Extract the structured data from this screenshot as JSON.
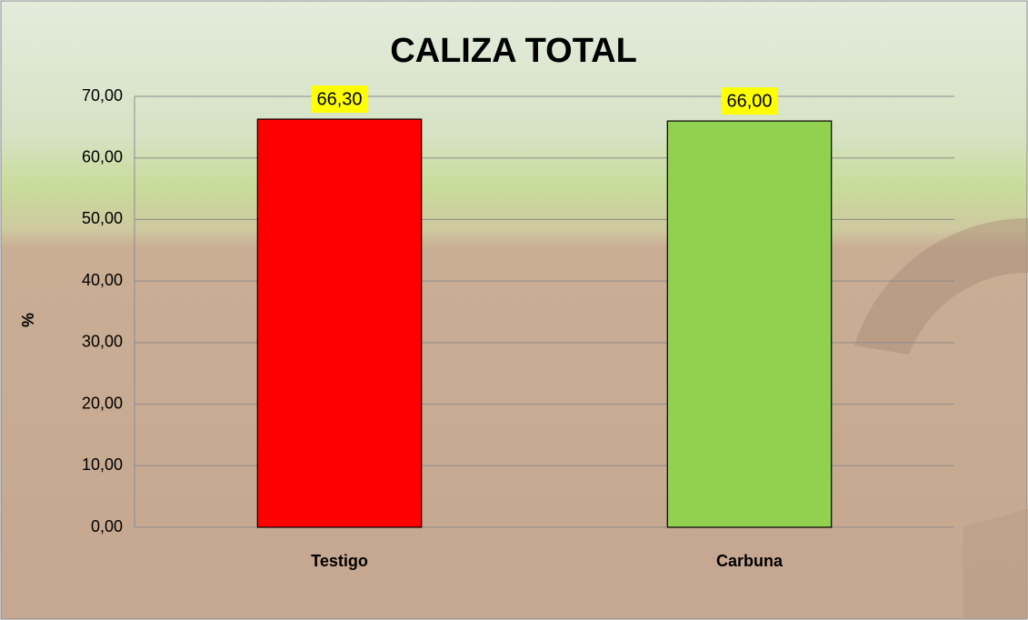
{
  "chart_data": {
    "type": "bar",
    "title": "CALIZA TOTAL",
    "y_label": "%",
    "categories": [
      "Testigo",
      "Carbuna"
    ],
    "values": [
      66.3,
      66.0
    ],
    "value_labels": [
      "66,30",
      "66,00"
    ],
    "colors": [
      "#ff0000",
      "#92d050"
    ],
    "ylim": [
      0,
      70
    ],
    "yticks": [
      {
        "value": 0,
        "label": "0,00"
      },
      {
        "value": 10,
        "label": "10,00"
      },
      {
        "value": 20,
        "label": "20,00"
      },
      {
        "value": 30,
        "label": "30,00"
      },
      {
        "value": 40,
        "label": "40,00"
      },
      {
        "value": 50,
        "label": "50,00"
      },
      {
        "value": 60,
        "label": "60,00"
      },
      {
        "value": 70,
        "label": "70,00"
      }
    ],
    "grid": true
  }
}
